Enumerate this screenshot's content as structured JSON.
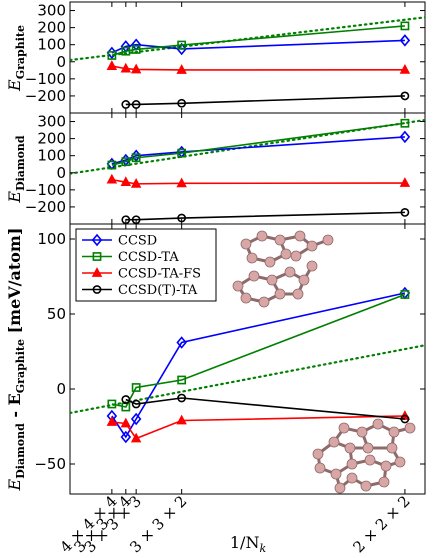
{
  "chart_data": [
    {
      "type": "line",
      "panel": "top",
      "ylabel_main": "E",
      "ylabel_sub": "Graphite",
      "x_tick_values": [
        0.015625,
        0.02083,
        0.02469,
        0.04167,
        0.125
      ],
      "ylim": [
        -300,
        350
      ],
      "yticks": [
        300,
        200,
        100,
        0,
        -100,
        -200
      ],
      "ytick_labels": [
        "300",
        "200",
        "100",
        "0",
        "−100",
        "−200"
      ],
      "grid": false,
      "series": [
        {
          "name": "CCSD",
          "color": "#0000ff",
          "marker": "diamond",
          "x": [
            0.015625,
            0.02083,
            0.02469,
            0.04167,
            0.125
          ],
          "y": [
            52,
            90,
            100,
            75,
            125
          ]
        },
        {
          "name": "CCSD-TA",
          "color": "#008000",
          "marker": "square",
          "x": [
            0.015625,
            0.02083,
            0.02469,
            0.04167,
            0.125
          ],
          "y": [
            37,
            62,
            72,
            98,
            210
          ]
        },
        {
          "name": "CCSD-TA-FS",
          "color": "#ff0000",
          "marker": "triangle",
          "x": [
            0.015625,
            0.02083,
            0.02469,
            0.04167,
            0.125
          ],
          "y": [
            -25,
            -40,
            -45,
            -48,
            -47
          ]
        },
        {
          "name": "CCSD(T)-TA",
          "color": "#000000",
          "marker": "circle",
          "x": [
            0.02083,
            0.02469,
            0.04167,
            0.125
          ],
          "y": [
            -250,
            -250,
            -243,
            -200
          ]
        }
      ],
      "fit_line": {
        "color": "#008000",
        "style": "dotted",
        "x": [
          0,
          0.135
        ],
        "y": [
          10,
          265
        ]
      }
    },
    {
      "type": "line",
      "panel": "middle",
      "ylabel_main": "E",
      "ylabel_sub": "Diamond",
      "x_tick_values": [
        0.015625,
        0.02083,
        0.02469,
        0.04167,
        0.125
      ],
      "ylim": [
        -300,
        350
      ],
      "yticks": [
        300,
        200,
        100,
        0,
        -100,
        -200
      ],
      "ytick_labels": [
        "300",
        "200",
        "100",
        "0",
        "−100",
        "−200"
      ],
      "grid": false,
      "series": [
        {
          "name": "CCSD",
          "color": "#0000ff",
          "marker": "diamond",
          "x": [
            0.015625,
            0.02083,
            0.02469,
            0.04167,
            0.125
          ],
          "y": [
            52,
            75,
            100,
            122,
            210
          ]
        },
        {
          "name": "CCSD-TA",
          "color": "#008000",
          "marker": "square",
          "x": [
            0.015625,
            0.02083,
            0.02469,
            0.04167,
            0.125
          ],
          "y": [
            45,
            65,
            88,
            115,
            290
          ]
        },
        {
          "name": "CCSD-TA-FS",
          "color": "#ff0000",
          "marker": "triangle",
          "x": [
            0.015625,
            0.02083,
            0.02469,
            0.04167,
            0.125
          ],
          "y": [
            -40,
            -55,
            -65,
            -62,
            -60
          ]
        },
        {
          "name": "CCSD(T)-TA",
          "color": "#000000",
          "marker": "circle",
          "x": [
            0.02083,
            0.02469,
            0.04167,
            0.125
          ],
          "y": [
            -275,
            -275,
            -265,
            -232
          ]
        }
      ],
      "fit_line": {
        "color": "#008000",
        "style": "dotted",
        "x": [
          0,
          0.135
        ],
        "y": [
          -5,
          315
        ]
      }
    },
    {
      "type": "line",
      "panel": "bottom",
      "ylabel_main": "E",
      "ylabel_sub1": "Diamond",
      "ylabel_mid": " - E",
      "ylabel_sub2": "Graphite",
      "ylabel_unit": " [meV/atom]",
      "xlabel": "1/N",
      "xlabel_sub": "k",
      "x_tick_values": [
        0.015625,
        0.02083,
        0.02469,
        0.04167,
        0.125
      ],
      "x_tick_labels": [
        "4 × 4 × 4",
        "3 × 3 × 4",
        "3 × 3 × 3",
        "3 × 3 × 2",
        "2 × 2 × 2"
      ],
      "ylim": [
        -70,
        110
      ],
      "yticks": [
        100,
        50,
        0,
        -50
      ],
      "ytick_labels": [
        "100",
        "50",
        "0",
        "−50"
      ],
      "grid": false,
      "legend_position": "top-left",
      "series": [
        {
          "name": "CCSD",
          "color": "#0000ff",
          "marker": "diamond",
          "x": [
            0.015625,
            0.02083,
            0.02469,
            0.04167,
            0.125
          ],
          "y": [
            -18,
            -32,
            -20,
            31,
            64
          ]
        },
        {
          "name": "CCSD-TA",
          "color": "#008000",
          "marker": "square",
          "x": [
            0.015625,
            0.02083,
            0.02469,
            0.04167,
            0.125
          ],
          "y": [
            -10,
            -12,
            1,
            6,
            63
          ]
        },
        {
          "name": "CCSD-TA-FS",
          "color": "#ff0000",
          "marker": "triangle",
          "x": [
            0.015625,
            0.02083,
            0.02469,
            0.04167,
            0.125
          ],
          "y": [
            -22,
            -23,
            -33,
            -21,
            -18
          ]
        },
        {
          "name": "CCSD(T)-TA",
          "color": "#000000",
          "marker": "circle",
          "x": [
            0.02083,
            0.02469,
            0.04167,
            0.125
          ],
          "y": [
            -7,
            -10,
            -6,
            -20
          ]
        }
      ],
      "fit_line": {
        "color": "#008000",
        "style": "dotted",
        "x": [
          0,
          0.135
        ],
        "y": [
          -16,
          30
        ]
      }
    }
  ]
}
